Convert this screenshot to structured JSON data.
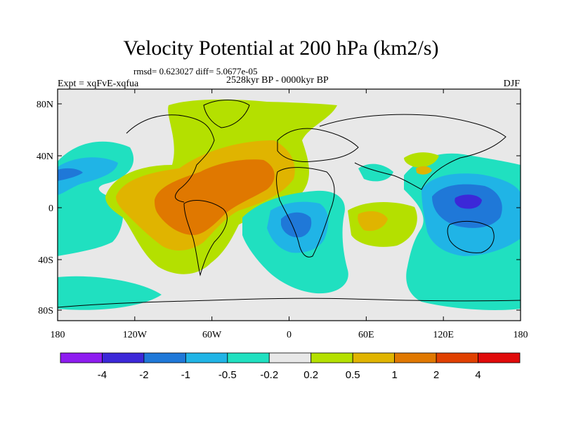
{
  "title": "Velocity Potential at 200 hPa (km2/s)",
  "stats": "rmsd= 0.623027 diff= 5.0677e-05",
  "period": "2528kyr BP - 0000kyr BP",
  "experiment": "Expt = xqFvE-xqfua",
  "season": "DJF",
  "axes": {
    "lat_ticks": [
      "80N",
      "40N",
      "0",
      "40S",
      "80S"
    ],
    "lon_ticks": [
      "180",
      "120W",
      "60W",
      "0",
      "60E",
      "120E",
      "180"
    ]
  },
  "colorbar": {
    "colors": [
      "#8e1cf0",
      "#3c28d8",
      "#1f78d8",
      "#20b4e6",
      "#20e0c0",
      "#e8e8e8",
      "#b4e000",
      "#e0b400",
      "#e07800",
      "#e04000",
      "#e00a0a"
    ],
    "labels": [
      "-4",
      "-2",
      "-1",
      "-0.5",
      "-0.2",
      "0.2",
      "0.5",
      "1",
      "2",
      "4"
    ]
  },
  "field_legend": {
    "negative_1": "#20e0c0",
    "negative_2": "#20b4e6",
    "negative_3": "#1f78d8",
    "negative_4": "#3c28d8",
    "positive_1": "#b4e000",
    "positive_2": "#e0b400",
    "positive_3": "#e07800"
  }
}
